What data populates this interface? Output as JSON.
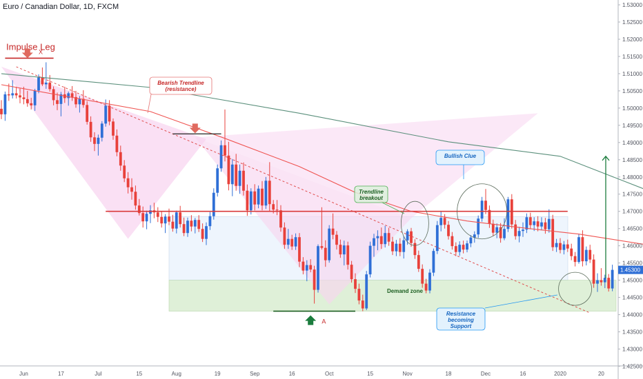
{
  "header": {
    "symbol_title": "Euro / Canadian Dollar, 1D, FXCM"
  },
  "colors": {
    "up": "#2f6fd6",
    "down": "#e8413b",
    "ma_slow": "#5a8f7b",
    "ma_fast": "#ef5350",
    "trendline": "#e04b4b",
    "pattern_fill": "#f8d5f0",
    "zone_fill": "#dff0d8",
    "range_fill": "#eef5fd",
    "resistance_line": "#d93a3a",
    "arrow_up": "#1b7c3d"
  },
  "chart_data": {
    "type": "candlestick",
    "instrument": "Euro / Canadian Dollar",
    "timeframe": "1D",
    "source": "FXCM",
    "ylim": [
      1.4213,
      1.5314
    ],
    "y_ticks": [
      "1.53000",
      "1.52500",
      "1.52000",
      "1.51500",
      "1.51000",
      "1.50500",
      "1.50000",
      "1.49500",
      "1.49000",
      "1.48500",
      "1.48000",
      "1.47500",
      "1.47000",
      "1.46500",
      "1.46000",
      "1.45500",
      "1.45000",
      "1.44500",
      "1.44000",
      "1.43500",
      "1.43000",
      "1.42500"
    ],
    "x_ticks": [
      "Jun",
      "17",
      "Jul",
      "15",
      "Aug",
      "19",
      "Sep",
      "16",
      "Oct",
      "15",
      "Nov",
      "18",
      "Dec",
      "16",
      "2020",
      "20"
    ],
    "candles": [
      {
        "o": 1.4998,
        "h": 1.5023,
        "l": 1.4968,
        "c": 1.4982
      },
      {
        "o": 1.4982,
        "h": 1.5048,
        "l": 1.4963,
        "c": 1.504
      },
      {
        "o": 1.504,
        "h": 1.5071,
        "l": 1.5021,
        "c": 1.5037
      },
      {
        "o": 1.5037,
        "h": 1.5081,
        "l": 1.5028,
        "c": 1.5043
      },
      {
        "o": 1.5043,
        "h": 1.5062,
        "l": 1.5028,
        "c": 1.5037
      },
      {
        "o": 1.5037,
        "h": 1.5057,
        "l": 1.5014,
        "c": 1.5031
      },
      {
        "o": 1.5031,
        "h": 1.5062,
        "l": 1.5011,
        "c": 1.5026
      },
      {
        "o": 1.5026,
        "h": 1.505,
        "l": 1.5004,
        "c": 1.5014
      },
      {
        "o": 1.5014,
        "h": 1.503,
        "l": 1.4996,
        "c": 1.5008
      },
      {
        "o": 1.5008,
        "h": 1.5056,
        "l": 1.4992,
        "c": 1.5051
      },
      {
        "o": 1.5051,
        "h": 1.5098,
        "l": 1.5043,
        "c": 1.5089
      },
      {
        "o": 1.5089,
        "h": 1.5118,
        "l": 1.5064,
        "c": 1.5069
      },
      {
        "o": 1.5069,
        "h": 1.5133,
        "l": 1.5056,
        "c": 1.5074
      },
      {
        "o": 1.5074,
        "h": 1.5096,
        "l": 1.5048,
        "c": 1.5055
      },
      {
        "o": 1.5055,
        "h": 1.5063,
        "l": 1.5008,
        "c": 1.5023
      },
      {
        "o": 1.5023,
        "h": 1.5045,
        "l": 1.4994,
        "c": 1.5012
      },
      {
        "o": 1.5012,
        "h": 1.5047,
        "l": 1.4976,
        "c": 1.504
      },
      {
        "o": 1.504,
        "h": 1.5062,
        "l": 1.5015,
        "c": 1.5029
      },
      {
        "o": 1.5029,
        "h": 1.5048,
        "l": 1.5007,
        "c": 1.5043
      },
      {
        "o": 1.5043,
        "h": 1.5064,
        "l": 1.5021,
        "c": 1.5032
      },
      {
        "o": 1.5032,
        "h": 1.505,
        "l": 1.5001,
        "c": 1.5011
      },
      {
        "o": 1.5011,
        "h": 1.5035,
        "l": 1.4987,
        "c": 1.5027
      },
      {
        "o": 1.5027,
        "h": 1.5052,
        "l": 1.5001,
        "c": 1.5009
      },
      {
        "o": 1.5009,
        "h": 1.502,
        "l": 1.4952,
        "c": 1.496
      },
      {
        "o": 1.496,
        "h": 1.4976,
        "l": 1.4902,
        "c": 1.4915
      },
      {
        "o": 1.4915,
        "h": 1.493,
        "l": 1.4875,
        "c": 1.4896
      },
      {
        "o": 1.4896,
        "h": 1.4923,
        "l": 1.4862,
        "c": 1.4914
      },
      {
        "o": 1.4914,
        "h": 1.4962,
        "l": 1.4903,
        "c": 1.4955
      },
      {
        "o": 1.4955,
        "h": 1.5025,
        "l": 1.4946,
        "c": 1.5007
      },
      {
        "o": 1.5007,
        "h": 1.5023,
        "l": 1.495,
        "c": 1.4961
      },
      {
        "o": 1.4961,
        "h": 1.497,
        "l": 1.4908,
        "c": 1.492
      },
      {
        "o": 1.492,
        "h": 1.4938,
        "l": 1.486,
        "c": 1.4872
      },
      {
        "o": 1.4872,
        "h": 1.4891,
        "l": 1.4818,
        "c": 1.4833
      },
      {
        "o": 1.4833,
        "h": 1.4849,
        "l": 1.4785,
        "c": 1.4796
      },
      {
        "o": 1.4796,
        "h": 1.4814,
        "l": 1.4752,
        "c": 1.477
      },
      {
        "o": 1.477,
        "h": 1.4796,
        "l": 1.4734,
        "c": 1.4757
      },
      {
        "o": 1.4757,
        "h": 1.4775,
        "l": 1.4705,
        "c": 1.4717
      },
      {
        "o": 1.4717,
        "h": 1.4736,
        "l": 1.4688,
        "c": 1.4695
      },
      {
        "o": 1.4695,
        "h": 1.4714,
        "l": 1.4653,
        "c": 1.4671
      },
      {
        "o": 1.4671,
        "h": 1.4702,
        "l": 1.4648,
        "c": 1.4693
      },
      {
        "o": 1.4693,
        "h": 1.4718,
        "l": 1.4666,
        "c": 1.4703
      },
      {
        "o": 1.4703,
        "h": 1.4725,
        "l": 1.468,
        "c": 1.4697
      },
      {
        "o": 1.4697,
        "h": 1.4712,
        "l": 1.4669,
        "c": 1.4684
      },
      {
        "o": 1.4684,
        "h": 1.47,
        "l": 1.4653,
        "c": 1.4665
      },
      {
        "o": 1.4665,
        "h": 1.4692,
        "l": 1.4637,
        "c": 1.4685
      },
      {
        "o": 1.4685,
        "h": 1.4708,
        "l": 1.466,
        "c": 1.467
      },
      {
        "o": 1.467,
        "h": 1.469,
        "l": 1.4641,
        "c": 1.465
      },
      {
        "o": 1.465,
        "h": 1.4702,
        "l": 1.4636,
        "c": 1.4697
      },
      {
        "o": 1.4697,
        "h": 1.4716,
        "l": 1.4653,
        "c": 1.4663
      },
      {
        "o": 1.4663,
        "h": 1.4682,
        "l": 1.4628,
        "c": 1.4637
      },
      {
        "o": 1.4637,
        "h": 1.4682,
        "l": 1.4626,
        "c": 1.4673
      },
      {
        "o": 1.4673,
        "h": 1.4689,
        "l": 1.4642,
        "c": 1.4656
      },
      {
        "o": 1.4656,
        "h": 1.4681,
        "l": 1.4636,
        "c": 1.4675
      },
      {
        "o": 1.4675,
        "h": 1.4689,
        "l": 1.464,
        "c": 1.4649
      },
      {
        "o": 1.4649,
        "h": 1.4665,
        "l": 1.4611,
        "c": 1.462
      },
      {
        "o": 1.462,
        "h": 1.4668,
        "l": 1.4602,
        "c": 1.4657
      },
      {
        "o": 1.4657,
        "h": 1.4698,
        "l": 1.4646,
        "c": 1.4686
      },
      {
        "o": 1.4686,
        "h": 1.4767,
        "l": 1.4676,
        "c": 1.4754
      },
      {
        "o": 1.4754,
        "h": 1.4836,
        "l": 1.4743,
        "c": 1.4825
      },
      {
        "o": 1.4825,
        "h": 1.4906,
        "l": 1.4815,
        "c": 1.4892
      },
      {
        "o": 1.4892,
        "h": 1.4996,
        "l": 1.4845,
        "c": 1.4862
      },
      {
        "o": 1.4862,
        "h": 1.4902,
        "l": 1.4761,
        "c": 1.4779
      },
      {
        "o": 1.4779,
        "h": 1.4852,
        "l": 1.4744,
        "c": 1.4836
      },
      {
        "o": 1.4836,
        "h": 1.4867,
        "l": 1.476,
        "c": 1.4774
      },
      {
        "o": 1.4774,
        "h": 1.4836,
        "l": 1.4751,
        "c": 1.4818
      },
      {
        "o": 1.4818,
        "h": 1.4842,
        "l": 1.4746,
        "c": 1.476
      },
      {
        "o": 1.476,
        "h": 1.4778,
        "l": 1.4687,
        "c": 1.4703
      },
      {
        "o": 1.4703,
        "h": 1.4767,
        "l": 1.4691,
        "c": 1.4758
      },
      {
        "o": 1.4758,
        "h": 1.4779,
        "l": 1.4703,
        "c": 1.472
      },
      {
        "o": 1.472,
        "h": 1.4775,
        "l": 1.4709,
        "c": 1.4766
      },
      {
        "o": 1.4766,
        "h": 1.4788,
        "l": 1.4703,
        "c": 1.4717
      },
      {
        "o": 1.4717,
        "h": 1.48,
        "l": 1.4707,
        "c": 1.4789
      },
      {
        "o": 1.4789,
        "h": 1.4843,
        "l": 1.47,
        "c": 1.4721
      },
      {
        "o": 1.4721,
        "h": 1.4733,
        "l": 1.4694,
        "c": 1.4705
      },
      {
        "o": 1.4705,
        "h": 1.4733,
        "l": 1.4689,
        "c": 1.4703
      },
      {
        "o": 1.4703,
        "h": 1.4718,
        "l": 1.4641,
        "c": 1.4653
      },
      {
        "o": 1.4653,
        "h": 1.4668,
        "l": 1.4591,
        "c": 1.4603
      },
      {
        "o": 1.4603,
        "h": 1.4649,
        "l": 1.4591,
        "c": 1.462
      },
      {
        "o": 1.462,
        "h": 1.4632,
        "l": 1.4588,
        "c": 1.4598
      },
      {
        "o": 1.4598,
        "h": 1.4636,
        "l": 1.4588,
        "c": 1.4625
      },
      {
        "o": 1.4625,
        "h": 1.4637,
        "l": 1.4538,
        "c": 1.4554
      },
      {
        "o": 1.4554,
        "h": 1.4567,
        "l": 1.4517,
        "c": 1.4528
      },
      {
        "o": 1.4528,
        "h": 1.4558,
        "l": 1.4497,
        "c": 1.4544
      },
      {
        "o": 1.4544,
        "h": 1.4561,
        "l": 1.4523,
        "c": 1.4531
      },
      {
        "o": 1.4531,
        "h": 1.4542,
        "l": 1.4432,
        "c": 1.4472
      },
      {
        "o": 1.4472,
        "h": 1.4604,
        "l": 1.4464,
        "c": 1.4599
      },
      {
        "o": 1.4599,
        "h": 1.4712,
        "l": 1.4589,
        "c": 1.4594
      },
      {
        "o": 1.4594,
        "h": 1.4616,
        "l": 1.4539,
        "c": 1.4558
      },
      {
        "o": 1.4558,
        "h": 1.466,
        "l": 1.4551,
        "c": 1.465
      },
      {
        "o": 1.465,
        "h": 1.4694,
        "l": 1.4619,
        "c": 1.4632
      },
      {
        "o": 1.4632,
        "h": 1.4643,
        "l": 1.4589,
        "c": 1.4603
      },
      {
        "o": 1.4603,
        "h": 1.4618,
        "l": 1.4565,
        "c": 1.4575
      },
      {
        "o": 1.4575,
        "h": 1.4615,
        "l": 1.4543,
        "c": 1.4601
      },
      {
        "o": 1.4601,
        "h": 1.4612,
        "l": 1.4531,
        "c": 1.4545
      },
      {
        "o": 1.4545,
        "h": 1.4556,
        "l": 1.4493,
        "c": 1.4503
      },
      {
        "o": 1.4503,
        "h": 1.452,
        "l": 1.4463,
        "c": 1.4475
      },
      {
        "o": 1.4475,
        "h": 1.449,
        "l": 1.443,
        "c": 1.4441
      },
      {
        "o": 1.4441,
        "h": 1.4458,
        "l": 1.441,
        "c": 1.4418
      },
      {
        "o": 1.4418,
        "h": 1.4527,
        "l": 1.4413,
        "c": 1.4517
      },
      {
        "o": 1.4517,
        "h": 1.4612,
        "l": 1.4508,
        "c": 1.46
      },
      {
        "o": 1.46,
        "h": 1.4635,
        "l": 1.4568,
        "c": 1.4622
      },
      {
        "o": 1.4622,
        "h": 1.4645,
        "l": 1.4587,
        "c": 1.4628
      },
      {
        "o": 1.4628,
        "h": 1.4653,
        "l": 1.4591,
        "c": 1.4605
      },
      {
        "o": 1.4605,
        "h": 1.4658,
        "l": 1.4595,
        "c": 1.4637
      },
      {
        "o": 1.4637,
        "h": 1.4652,
        "l": 1.46,
        "c": 1.4612
      },
      {
        "o": 1.4612,
        "h": 1.4626,
        "l": 1.4573,
        "c": 1.4584
      },
      {
        "o": 1.4584,
        "h": 1.4617,
        "l": 1.457,
        "c": 1.4606
      },
      {
        "o": 1.4606,
        "h": 1.4622,
        "l": 1.457,
        "c": 1.4582
      },
      {
        "o": 1.4582,
        "h": 1.4628,
        "l": 1.4563,
        "c": 1.4616
      },
      {
        "o": 1.4616,
        "h": 1.4648,
        "l": 1.4603,
        "c": 1.4642
      },
      {
        "o": 1.4642,
        "h": 1.4652,
        "l": 1.4597,
        "c": 1.4608
      },
      {
        "o": 1.4608,
        "h": 1.4619,
        "l": 1.4562,
        "c": 1.4573
      },
      {
        "o": 1.4573,
        "h": 1.4586,
        "l": 1.4524,
        "c": 1.4533
      },
      {
        "o": 1.4533,
        "h": 1.4546,
        "l": 1.4478,
        "c": 1.449
      },
      {
        "o": 1.449,
        "h": 1.4504,
        "l": 1.4462,
        "c": 1.447
      },
      {
        "o": 1.447,
        "h": 1.4532,
        "l": 1.4462,
        "c": 1.4522
      },
      {
        "o": 1.4522,
        "h": 1.4592,
        "l": 1.4512,
        "c": 1.4585
      },
      {
        "o": 1.4585,
        "h": 1.4672,
        "l": 1.4576,
        "c": 1.466
      },
      {
        "o": 1.466,
        "h": 1.4701,
        "l": 1.4642,
        "c": 1.4681
      },
      {
        "o": 1.4681,
        "h": 1.4692,
        "l": 1.465,
        "c": 1.4661
      },
      {
        "o": 1.4661,
        "h": 1.4672,
        "l": 1.4618,
        "c": 1.4628
      },
      {
        "o": 1.4628,
        "h": 1.464,
        "l": 1.4589,
        "c": 1.4599
      },
      {
        "o": 1.4599,
        "h": 1.461,
        "l": 1.457,
        "c": 1.4582
      },
      {
        "o": 1.4582,
        "h": 1.4613,
        "l": 1.4571,
        "c": 1.4603
      },
      {
        "o": 1.4603,
        "h": 1.4615,
        "l": 1.4578,
        "c": 1.4589
      },
      {
        "o": 1.4589,
        "h": 1.4615,
        "l": 1.4581,
        "c": 1.4607
      },
      {
        "o": 1.4607,
        "h": 1.4631,
        "l": 1.4596,
        "c": 1.4624
      },
      {
        "o": 1.4624,
        "h": 1.4642,
        "l": 1.4609,
        "c": 1.4633
      },
      {
        "o": 1.4633,
        "h": 1.4688,
        "l": 1.4623,
        "c": 1.4679
      },
      {
        "o": 1.4679,
        "h": 1.4742,
        "l": 1.467,
        "c": 1.4731
      },
      {
        "o": 1.4731,
        "h": 1.4765,
        "l": 1.4692,
        "c": 1.4704
      },
      {
        "o": 1.4704,
        "h": 1.4717,
        "l": 1.4652,
        "c": 1.4664
      },
      {
        "o": 1.4664,
        "h": 1.4676,
        "l": 1.4628,
        "c": 1.4638
      },
      {
        "o": 1.4638,
        "h": 1.4665,
        "l": 1.4622,
        "c": 1.4654
      },
      {
        "o": 1.4654,
        "h": 1.4666,
        "l": 1.4609,
        "c": 1.4622
      },
      {
        "o": 1.4622,
        "h": 1.468,
        "l": 1.4616,
        "c": 1.4649
      },
      {
        "o": 1.4649,
        "h": 1.4742,
        "l": 1.464,
        "c": 1.4735
      },
      {
        "o": 1.4735,
        "h": 1.475,
        "l": 1.465,
        "c": 1.4662
      },
      {
        "o": 1.4662,
        "h": 1.4675,
        "l": 1.4618,
        "c": 1.4628
      },
      {
        "o": 1.4628,
        "h": 1.4655,
        "l": 1.461,
        "c": 1.4643
      },
      {
        "o": 1.4643,
        "h": 1.4668,
        "l": 1.4626,
        "c": 1.4647
      },
      {
        "o": 1.4647,
        "h": 1.4694,
        "l": 1.4637,
        "c": 1.4683
      },
      {
        "o": 1.4683,
        "h": 1.4696,
        "l": 1.4648,
        "c": 1.466
      },
      {
        "o": 1.466,
        "h": 1.4683,
        "l": 1.4643,
        "c": 1.4671
      },
      {
        "o": 1.4671,
        "h": 1.4686,
        "l": 1.4642,
        "c": 1.4656
      },
      {
        "o": 1.4656,
        "h": 1.4683,
        "l": 1.4645,
        "c": 1.4668
      },
      {
        "o": 1.4668,
        "h": 1.4681,
        "l": 1.4635,
        "c": 1.4648
      },
      {
        "o": 1.4648,
        "h": 1.4706,
        "l": 1.4638,
        "c": 1.4678
      },
      {
        "o": 1.4678,
        "h": 1.469,
        "l": 1.4585,
        "c": 1.4596
      },
      {
        "o": 1.4596,
        "h": 1.462,
        "l": 1.4582,
        "c": 1.4608
      },
      {
        "o": 1.4608,
        "h": 1.4622,
        "l": 1.4578,
        "c": 1.4588
      },
      {
        "o": 1.4588,
        "h": 1.4614,
        "l": 1.4575,
        "c": 1.4604
      },
      {
        "o": 1.4604,
        "h": 1.4618,
        "l": 1.4582,
        "c": 1.4592
      },
      {
        "o": 1.4592,
        "h": 1.4606,
        "l": 1.4558,
        "c": 1.457
      },
      {
        "o": 1.457,
        "h": 1.4582,
        "l": 1.454,
        "c": 1.4553
      },
      {
        "o": 1.4553,
        "h": 1.4635,
        "l": 1.4548,
        "c": 1.4625
      },
      {
        "o": 1.4625,
        "h": 1.4645,
        "l": 1.454,
        "c": 1.4555
      },
      {
        "o": 1.4555,
        "h": 1.4598,
        "l": 1.4543,
        "c": 1.4588
      },
      {
        "o": 1.4588,
        "h": 1.4603,
        "l": 1.455,
        "c": 1.456
      },
      {
        "o": 1.456,
        "h": 1.4575,
        "l": 1.4478,
        "c": 1.449
      },
      {
        "o": 1.449,
        "h": 1.452,
        "l": 1.4466,
        "c": 1.45
      },
      {
        "o": 1.45,
        "h": 1.4535,
        "l": 1.4484,
        "c": 1.4494
      },
      {
        "o": 1.4494,
        "h": 1.4516,
        "l": 1.4477,
        "c": 1.4507
      },
      {
        "o": 1.4507,
        "h": 1.4518,
        "l": 1.4467,
        "c": 1.4476
      },
      {
        "o": 1.4476,
        "h": 1.4545,
        "l": 1.4468,
        "c": 1.453
      }
    ],
    "moving_averages": [
      {
        "key": "ma_slow",
        "points": [
          [
            0,
            1.51
          ],
          [
            40,
            1.506
          ],
          [
            80,
            1.4985
          ],
          [
            120,
            1.4902
          ],
          [
            150,
            1.486
          ],
          [
            173,
            1.4763
          ],
          [
            185,
            1.4722
          ]
        ]
      },
      {
        "key": "ma_fast",
        "points": [
          [
            0,
            1.5068
          ],
          [
            40,
            1.499
          ],
          [
            60,
            1.4912
          ],
          [
            80,
            1.483
          ],
          [
            95,
            1.4755
          ],
          [
            110,
            1.47
          ],
          [
            125,
            1.4672
          ],
          [
            140,
            1.4652
          ],
          [
            155,
            1.4634
          ],
          [
            178,
            1.4595
          ]
        ]
      }
    ],
    "annotations": {
      "impulse_label": "Impulse Leg",
      "point_x": "X",
      "point_a": "A",
      "trendline_label": [
        "Bearish Trendline",
        "(resistance)"
      ],
      "breakout_label": [
        "Trendline",
        "breakout"
      ],
      "bullish_label": "Bullish Clue",
      "demand_label": "Demand zone",
      "support_label": [
        "Resistance",
        "becoming",
        "Support"
      ]
    },
    "levels": {
      "resistance": 1.47,
      "range_top": 1.4685,
      "demand_top": 1.45,
      "demand_bottom": 1.441,
      "impulse_high": 1.5145,
      "swing_high": 1.4925,
      "swing_low": 1.441
    },
    "last_price": 1.453
  }
}
